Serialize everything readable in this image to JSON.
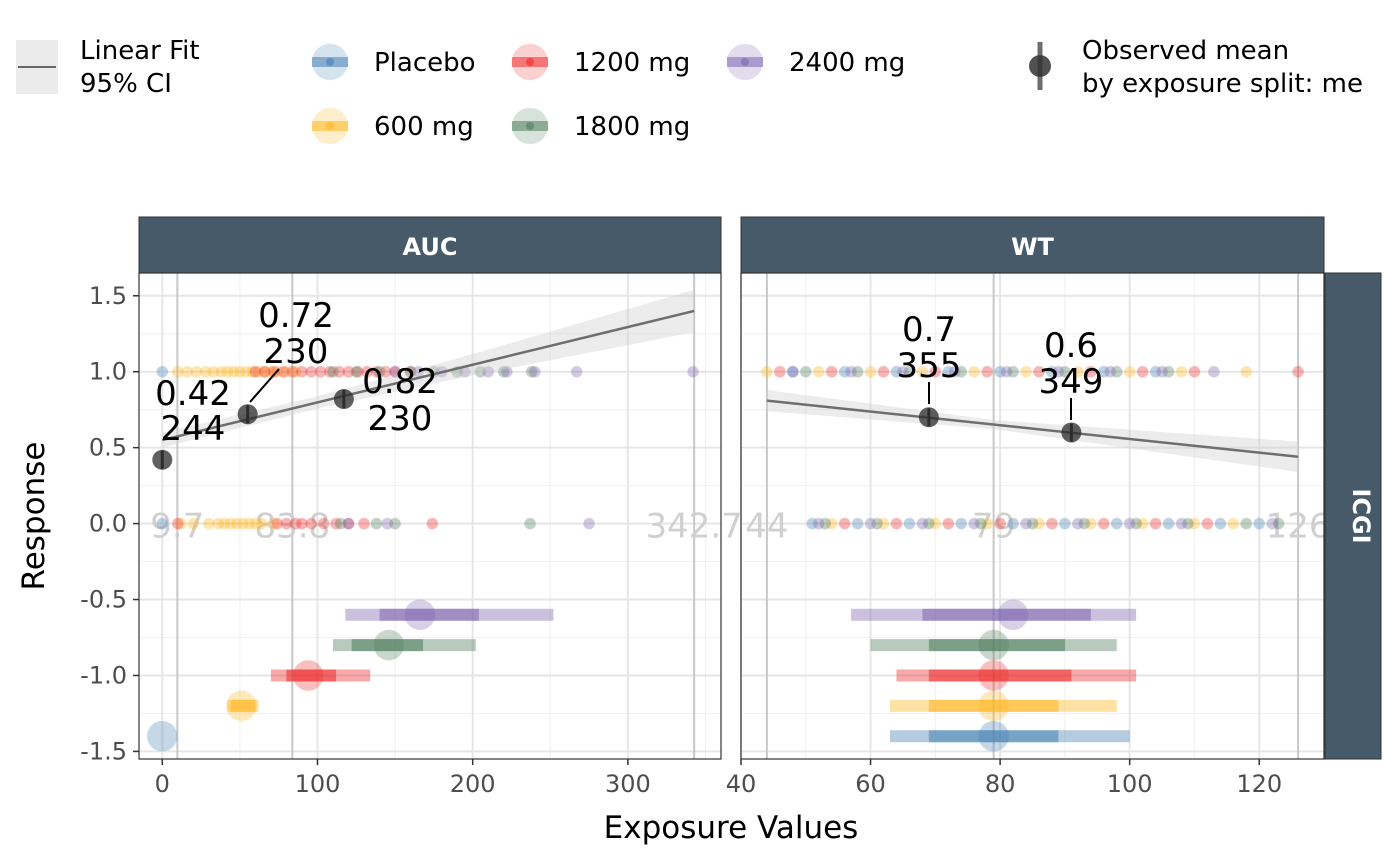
{
  "legend": {
    "fit_line_label": "Linear Fit",
    "fit_ci_label": "95% CI",
    "dose_items": [
      {
        "label": "Placebo",
        "color": "#4682B4"
      },
      {
        "label": "1200 mg",
        "color": "#EE2C2C"
      },
      {
        "label": "2400 mg",
        "color": "#7E65B1"
      },
      {
        "label": "600 mg",
        "color": "#FFB61E"
      },
      {
        "label": "1800 mg",
        "color": "#4E7D5B"
      }
    ],
    "observed_label_line1": "Observed mean",
    "observed_label_line2": "by exposure split: me"
  },
  "y_axis_label": "Response",
  "x_axis_label": "Exposure Values",
  "row_strip_label": "ICGI",
  "chart_data": [
    {
      "type": "scatter",
      "panel": "AUC",
      "xlim": [
        -15,
        360
      ],
      "ylim": [
        -1.55,
        1.65
      ],
      "x_ticks": [
        0,
        100,
        200,
        300
      ],
      "y_ticks": [
        -1.5,
        -1.0,
        -0.5,
        0.0,
        0.5,
        1.0,
        1.5
      ],
      "y_tick_labels": [
        "-1.5",
        "-1.0",
        "-0.5",
        "0.0",
        "0.5",
        "1.0",
        "1.5"
      ],
      "quantile_lines": [
        {
          "x": 9.7,
          "label": "9.7"
        },
        {
          "x": 83.8,
          "label": "83.8"
        },
        {
          "x": 342.7,
          "label": "342.7"
        }
      ],
      "fit_line": {
        "x": [
          0,
          342.7
        ],
        "y": [
          0.55,
          1.4
        ],
        "ci_half_width_at_x": [
          [
            0,
            0.05
          ],
          [
            100,
            0.04
          ],
          [
            200,
            0.07
          ],
          [
            342.7,
            0.14
          ]
        ]
      },
      "observed_means": [
        {
          "x": 0,
          "y": 0.42,
          "label_value": "0.42",
          "label_n": "244"
        },
        {
          "x": 55,
          "y": 0.72,
          "label_value": "0.72",
          "label_n": "230"
        },
        {
          "x": 117,
          "y": 0.82,
          "label_value": "0.82",
          "label_n": "230"
        }
      ],
      "response_points": [
        {
          "dose": "Placebo",
          "response": 1,
          "x": [
            0
          ]
        },
        {
          "dose": "Placebo",
          "response": 0,
          "x": [
            0
          ]
        },
        {
          "dose": "600 mg",
          "response": 1,
          "x": [
            10,
            16,
            22,
            28,
            33,
            38,
            42,
            46,
            50,
            54,
            58,
            62,
            66,
            70,
            74,
            80,
            86
          ]
        },
        {
          "dose": "600 mg",
          "response": 0,
          "x": [
            12,
            20,
            30,
            36,
            40,
            44,
            48,
            52,
            56,
            60,
            64,
            72
          ]
        },
        {
          "dose": "1200 mg",
          "response": 1,
          "x": [
            60,
            66,
            72,
            78,
            84,
            90,
            96,
            102,
            108,
            114,
            120,
            126,
            132,
            138,
            144,
            150,
            160
          ]
        },
        {
          "dose": "1200 mg",
          "response": 0,
          "x": [
            10,
            74,
            80,
            86,
            90,
            96,
            104,
            112,
            120,
            130,
            174
          ]
        },
        {
          "dose": "1800 mg",
          "response": 1,
          "x": [
            110,
            125,
            140,
            160,
            175,
            190,
            205,
            220,
            238
          ]
        },
        {
          "dose": "1800 mg",
          "response": 0,
          "x": [
            115,
            138,
            150,
            237
          ]
        },
        {
          "dose": "2400 mg",
          "response": 1,
          "x": [
            150,
            165,
            180,
            195,
            210,
            222,
            240,
            267,
            342
          ]
        },
        {
          "dose": "2400 mg",
          "response": 0,
          "x": [
            120,
            145,
            275
          ]
        }
      ],
      "dose_exposure_summary": [
        {
          "dose": "2400 mg",
          "y": -0.6,
          "median": 166,
          "iqr": [
            140,
            204
          ],
          "range": [
            118,
            252
          ]
        },
        {
          "dose": "1800 mg",
          "y": -0.8,
          "median": 146,
          "iqr": [
            122,
            168
          ],
          "range": [
            110,
            202
          ]
        },
        {
          "dose": "1200 mg",
          "y": -1.0,
          "median": 94,
          "iqr": [
            80,
            112
          ],
          "range": [
            70,
            134
          ]
        },
        {
          "dose": "600 mg",
          "y": -1.2,
          "median": 51,
          "iqr": [
            44,
            60
          ],
          "range": [
            42,
            62
          ]
        },
        {
          "dose": "Placebo",
          "y": -1.4,
          "median": 0,
          "iqr": [
            0,
            0
          ],
          "range": [
            0,
            0
          ]
        }
      ]
    },
    {
      "type": "scatter",
      "panel": "WT",
      "xlim": [
        40,
        130
      ],
      "ylim": [
        -1.55,
        1.65
      ],
      "x_ticks": [
        40,
        60,
        80,
        100,
        120
      ],
      "quantile_lines": [
        {
          "x": 44,
          "label": "44"
        },
        {
          "x": 79,
          "label": "79"
        },
        {
          "x": 126,
          "label": "126"
        }
      ],
      "fit_line": {
        "x": [
          44,
          126
        ],
        "y": [
          0.81,
          0.44
        ],
        "ci_half_width_at_x": [
          [
            44,
            0.07
          ],
          [
            79,
            0.03
          ],
          [
            126,
            0.1
          ]
        ]
      },
      "observed_means": [
        {
          "x": 69,
          "y": 0.7,
          "label_value": "0.7",
          "label_n": "355"
        },
        {
          "x": 91,
          "y": 0.6,
          "label_value": "0.6",
          "label_n": "349"
        }
      ],
      "response_points": [
        {
          "dose": "Placebo",
          "response": 1,
          "x": [
            48,
            56,
            64,
            72,
            80,
            88,
            96,
            104
          ]
        },
        {
          "dose": "Placebo",
          "response": 0,
          "x": [
            51,
            58,
            66,
            74,
            82,
            90,
            98,
            106,
            114,
            120
          ]
        },
        {
          "dose": "600 mg",
          "response": 1,
          "x": [
            44,
            52,
            60,
            68,
            76,
            84,
            92,
            100,
            108,
            118
          ]
        },
        {
          "dose": "600 mg",
          "response": 0,
          "x": [
            54,
            62,
            70,
            78,
            86,
            94,
            102,
            110,
            116
          ]
        },
        {
          "dose": "1200 mg",
          "response": 1,
          "x": [
            46,
            54,
            62,
            70,
            78,
            86,
            94,
            102,
            110,
            126
          ]
        },
        {
          "dose": "1200 mg",
          "response": 0,
          "x": [
            56,
            64,
            72,
            80,
            88,
            96,
            104,
            112
          ]
        },
        {
          "dose": "1800 mg",
          "response": 1,
          "x": [
            50,
            58,
            66,
            74,
            82,
            90,
            98,
            106
          ]
        },
        {
          "dose": "1800 mg",
          "response": 0,
          "x": [
            53,
            61,
            69,
            77,
            85,
            93,
            101,
            109,
            118,
            123
          ]
        },
        {
          "dose": "2400 mg",
          "response": 1,
          "x": [
            48,
            57,
            65,
            73,
            81,
            89,
            97,
            105,
            113
          ]
        },
        {
          "dose": "2400 mg",
          "response": 0,
          "x": [
            52,
            60,
            68,
            76,
            84,
            92,
            100,
            108,
            122
          ]
        }
      ],
      "dose_exposure_summary": [
        {
          "dose": "2400 mg",
          "y": -0.6,
          "median": 82,
          "iqr": [
            68,
            94
          ],
          "range": [
            57,
            101
          ]
        },
        {
          "dose": "1800 mg",
          "y": -0.8,
          "median": 79,
          "iqr": [
            69,
            90
          ],
          "range": [
            60,
            98
          ]
        },
        {
          "dose": "1200 mg",
          "y": -1.0,
          "median": 79,
          "iqr": [
            69,
            91
          ],
          "range": [
            64,
            101
          ]
        },
        {
          "dose": "600 mg",
          "y": -1.2,
          "median": 79,
          "iqr": [
            69,
            89
          ],
          "range": [
            63,
            98
          ]
        },
        {
          "dose": "Placebo",
          "y": -1.4,
          "median": 79,
          "iqr": [
            69,
            89
          ],
          "range": [
            63,
            100
          ]
        }
      ]
    }
  ]
}
